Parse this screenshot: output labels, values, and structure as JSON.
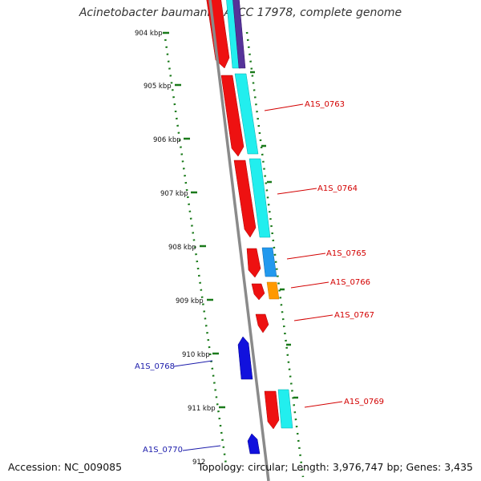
{
  "header": {
    "title": "Acinetobacter baumannii ATCC 17978, complete genome"
  },
  "footer": {
    "accession": "Accession: NC_009085",
    "topology": "Topology: circular; Length: 3,976,747 bp; Genes: 3,435"
  },
  "ticks": [
    "904 kbp",
    "905 kbp",
    "906 kbp",
    "907 kbp",
    "908 kbp",
    "909 kbp",
    "910 kbp",
    "911 kbp",
    "912"
  ],
  "genes_forward": [
    "A1S_0763",
    "A1S_0764",
    "A1S_0765",
    "A1S_0766",
    "A1S_0767",
    "A1S_0769"
  ],
  "genes_reverse": [
    "A1S_0768",
    "A1S_0770"
  ],
  "colors": {
    "backbone": "#8a8a8a",
    "forward_gene": "#ee1111",
    "reverse_gene": "#1111dd",
    "cds_cyan": "#22eeee",
    "cds_blue": "#2299ee",
    "cds_orange": "#ff9900",
    "cds_purple": "#553399",
    "gc_dots": "#1a7a1a",
    "label_red": "#d30000",
    "label_blue": "#1a1aaa"
  }
}
